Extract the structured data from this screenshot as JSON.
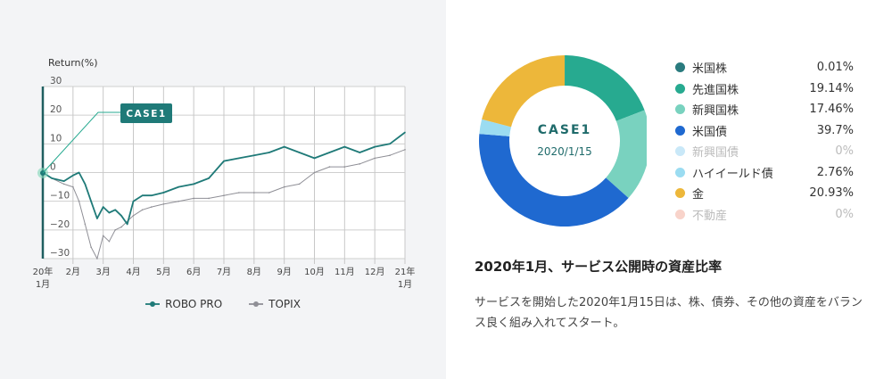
{
  "chart_data": [
    {
      "type": "line",
      "ylabel": "Return(%)",
      "ylim": [
        -30,
        30
      ],
      "yticks": [
        "30",
        "20",
        "10",
        "0",
        "−10",
        "−20",
        "−30"
      ],
      "xticks": [
        {
          "top": "20年",
          "bottom": "1月"
        },
        {
          "top": "2月",
          "bottom": ""
        },
        {
          "top": "3月",
          "bottom": ""
        },
        {
          "top": "4月",
          "bottom": ""
        },
        {
          "top": "5月",
          "bottom": ""
        },
        {
          "top": "6月",
          "bottom": ""
        },
        {
          "top": "7月",
          "bottom": ""
        },
        {
          "top": "8月",
          "bottom": ""
        },
        {
          "top": "9月",
          "bottom": ""
        },
        {
          "top": "10月",
          "bottom": ""
        },
        {
          "top": "11月",
          "bottom": ""
        },
        {
          "top": "12月",
          "bottom": ""
        },
        {
          "top": "21年",
          "bottom": "1月"
        }
      ],
      "annotation": "CASE1",
      "series": [
        {
          "name": "ROBO PRO",
          "color": "#1f7a78",
          "x": [
            0,
            0.3,
            0.7,
            1.0,
            1.2,
            1.4,
            1.6,
            1.8,
            2.0,
            2.2,
            2.4,
            2.6,
            2.8,
            3.0,
            3.3,
            3.6,
            4.0,
            4.5,
            5.0,
            5.5,
            6.0,
            6.5,
            7.0,
            7.5,
            8.0,
            8.5,
            9.0,
            9.5,
            10.0,
            10.5,
            11.0,
            11.5,
            12.0
          ],
          "values": [
            0,
            -2,
            -3,
            -1,
            0,
            -4,
            -10,
            -16,
            -12,
            -14,
            -13,
            -15,
            -18,
            -10,
            -8,
            -8,
            -7,
            -5,
            -4,
            -2,
            4,
            5,
            6,
            7,
            9,
            7,
            5,
            7,
            9,
            7,
            9,
            10,
            14
          ]
        },
        {
          "name": "TOPIX",
          "color": "#8f8f96",
          "x": [
            0,
            0.3,
            0.7,
            1.0,
            1.2,
            1.4,
            1.6,
            1.8,
            2.0,
            2.2,
            2.4,
            2.6,
            2.8,
            3.0,
            3.3,
            3.6,
            4.0,
            4.5,
            5.0,
            5.5,
            6.0,
            6.5,
            7.0,
            7.5,
            8.0,
            8.5,
            9.0,
            9.5,
            10.0,
            10.5,
            11.0,
            11.5,
            12.0
          ],
          "values": [
            0,
            -2,
            -4,
            -5,
            -10,
            -18,
            -26,
            -30,
            -22,
            -24,
            -20,
            -19,
            -17,
            -15,
            -13,
            -12,
            -11,
            -10,
            -9,
            -9,
            -8,
            -7,
            -7,
            -7,
            -5,
            -4,
            0,
            2,
            2,
            3,
            5,
            6,
            8
          ]
        }
      ]
    },
    {
      "type": "pie",
      "title": "CASE1",
      "subtitle": "2020/1/15",
      "labels": [
        "米国株",
        "先進国株",
        "新興国株",
        "米国債",
        "新興国債",
        "ハイイールド債",
        "金",
        "不動産"
      ],
      "values": [
        0.01,
        19.14,
        17.46,
        39.7,
        0,
        2.76,
        20.93,
        0
      ],
      "colors": [
        "#2a7b7e",
        "#27aa90",
        "#79d2bf",
        "#1f69d0",
        "#c9e8f8",
        "#9bdcf1",
        "#edb73a",
        "#f8d3ca"
      ]
    }
  ],
  "legend": {
    "robo": "ROBO PRO",
    "topix": "TOPIX"
  },
  "allocation": [
    {
      "name": "米国株",
      "pct": "0.01%",
      "color": "#2a7b7e",
      "faded": false
    },
    {
      "name": "先進国株",
      "pct": "19.14%",
      "color": "#27aa90",
      "faded": false
    },
    {
      "name": "新興国株",
      "pct": "17.46%",
      "color": "#79d2bf",
      "faded": false
    },
    {
      "name": "米国債",
      "pct": "39.7%",
      "color": "#1f69d0",
      "faded": false
    },
    {
      "name": "新興国債",
      "pct": "0%",
      "color": "#c9e8f8",
      "faded": true
    },
    {
      "name": "ハイイールド債",
      "pct": "2.76%",
      "color": "#9bdcf1",
      "faded": false
    },
    {
      "name": "金",
      "pct": "20.93%",
      "color": "#edb73a",
      "faded": false
    },
    {
      "name": "不動産",
      "pct": "0%",
      "color": "#f8d3ca",
      "faded": true
    }
  ],
  "heading": "2020年1月、サービス公開時の資産比率",
  "description": "サービスを開始した2020年1月15日は、株、債券、その他の資産をバランス良く組み入れてスタート。"
}
